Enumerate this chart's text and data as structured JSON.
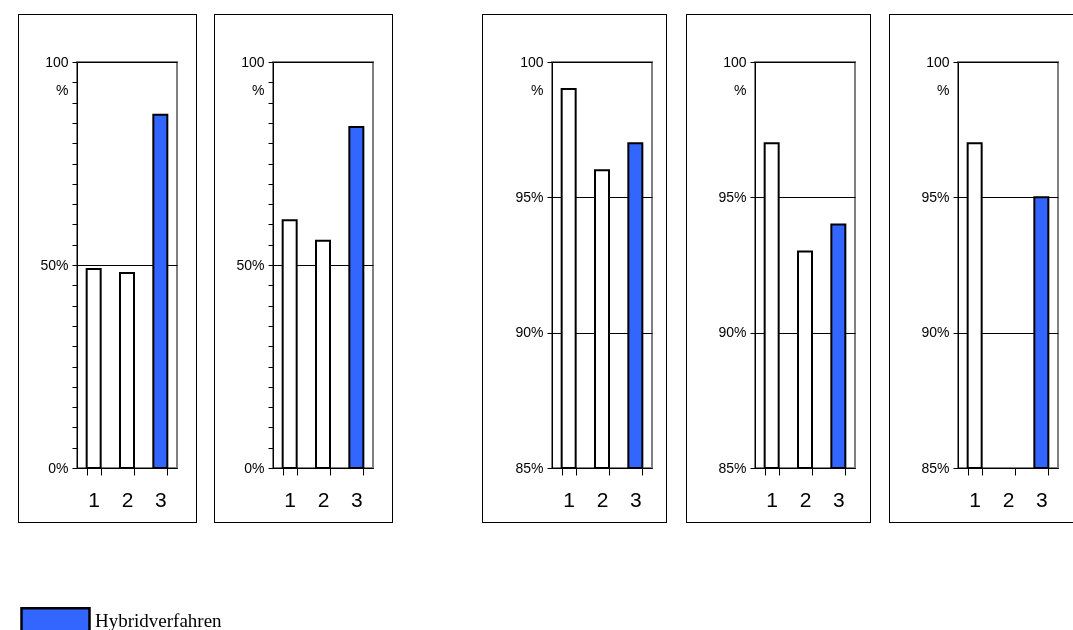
{
  "chart_data": [
    {
      "type": "bar",
      "stacked": true,
      "categories": [
        "1",
        "2",
        "3"
      ],
      "legend": "bottom left",
      "grid": "y",
      "ylim": [
        0,
        100
      ],
      "yticks": [
        {
          "value": 0,
          "label": "0%"
        },
        {
          "value": 5,
          "label": null
        },
        {
          "value": 10,
          "label": null
        },
        {
          "value": 15,
          "label": null
        },
        {
          "value": 20,
          "label": null
        },
        {
          "value": 25,
          "label": null
        },
        {
          "value": 30,
          "label": null
        },
        {
          "value": 35,
          "label": null
        },
        {
          "value": 40,
          "label": null
        },
        {
          "value": 45,
          "label": null
        },
        {
          "value": 50,
          "label": "50%"
        },
        {
          "value": 55,
          "label": null
        },
        {
          "value": 60,
          "label": null
        },
        {
          "value": 65,
          "label": null
        },
        {
          "value": 70,
          "label": null
        },
        {
          "value": 75,
          "label": null
        },
        {
          "value": 80,
          "label": null
        },
        {
          "value": 85,
          "label": null
        },
        {
          "value": 90,
          "label": null
        },
        {
          "value": 95,
          "label": null
        },
        {
          "value": 100,
          "label": "100\n%"
        }
      ],
      "series": [
        {
          "color": "#ffffff",
          "values": [
            49,
            48,
            null
          ]
        },
        {
          "name": "Hybridverfahren",
          "color": "#3366ff",
          "values": [
            null,
            null,
            87
          ]
        }
      ]
    },
    {
      "type": "bar",
      "stacked": true,
      "categories": [
        "1",
        "2",
        "3"
      ],
      "grid": "y",
      "ylim": [
        0,
        100
      ],
      "yticks": [
        {
          "value": 0,
          "label": "0%"
        },
        {
          "value": 5,
          "label": null
        },
        {
          "value": 10,
          "label": null
        },
        {
          "value": 15,
          "label": null
        },
        {
          "value": 20,
          "label": null
        },
        {
          "value": 25,
          "label": null
        },
        {
          "value": 30,
          "label": null
        },
        {
          "value": 35,
          "label": null
        },
        {
          "value": 40,
          "label": null
        },
        {
          "value": 45,
          "label": null
        },
        {
          "value": 50,
          "label": "50%"
        },
        {
          "value": 55,
          "label": null
        },
        {
          "value": 60,
          "label": null
        },
        {
          "value": 65,
          "label": null
        },
        {
          "value": 70,
          "label": null
        },
        {
          "value": 75,
          "label": null
        },
        {
          "value": 80,
          "label": null
        },
        {
          "value": 85,
          "label": null
        },
        {
          "value": 90,
          "label": null
        },
        {
          "value": 95,
          "label": null
        },
        {
          "value": 100,
          "label": "100\n%"
        }
      ],
      "series": [
        {
          "color": "#ffffff",
          "values": [
            61,
            56,
            null
          ]
        },
        {
          "color": "#3366ff",
          "values": [
            null,
            null,
            84
          ]
        }
      ]
    },
    {
      "type": "bar",
      "stacked": true,
      "categories": [
        "1",
        "2",
        "3"
      ],
      "grid": "y",
      "ylim": [
        85,
        100
      ],
      "yticks": [
        {
          "value": 85,
          "label": "85%"
        },
        {
          "value": 90,
          "label": "90%"
        },
        {
          "value": 95,
          "label": "95%"
        },
        {
          "value": 100,
          "label": "100\n%"
        }
      ],
      "series": [
        {
          "color": "#ffffff",
          "values": [
            99,
            96,
            null
          ]
        },
        {
          "color": "#3366ff",
          "values": [
            null,
            null,
            97
          ]
        }
      ]
    },
    {
      "type": "bar",
      "stacked": true,
      "categories": [
        "1",
        "2",
        "3"
      ],
      "grid": "y",
      "ylim": [
        85,
        100
      ],
      "yticks": [
        {
          "value": 85,
          "label": "85%"
        },
        {
          "value": 90,
          "label": "90%"
        },
        {
          "value": 95,
          "label": "95%"
        },
        {
          "value": 100,
          "label": "100\n%"
        }
      ],
      "series": [
        {
          "color": "#ffffff",
          "values": [
            97,
            93,
            null
          ]
        },
        {
          "color": "#3366ff",
          "values": [
            null,
            null,
            94
          ]
        }
      ]
    },
    {
      "type": "bar",
      "stacked": true,
      "categories": [
        "1",
        "2",
        "3"
      ],
      "grid": "y",
      "ylim": [
        85,
        100
      ],
      "yticks": [
        {
          "value": 85,
          "label": "85%"
        },
        {
          "value": 90,
          "label": "90%"
        },
        {
          "value": 95,
          "label": "95%"
        },
        {
          "value": 100,
          "label": "100\n%"
        }
      ],
      "series": [
        {
          "color": "#ffffff",
          "values": [
            97,
            null,
            null
          ]
        },
        {
          "color": "#3366ff",
          "values": [
            null,
            null,
            95
          ]
        }
      ]
    }
  ]
}
